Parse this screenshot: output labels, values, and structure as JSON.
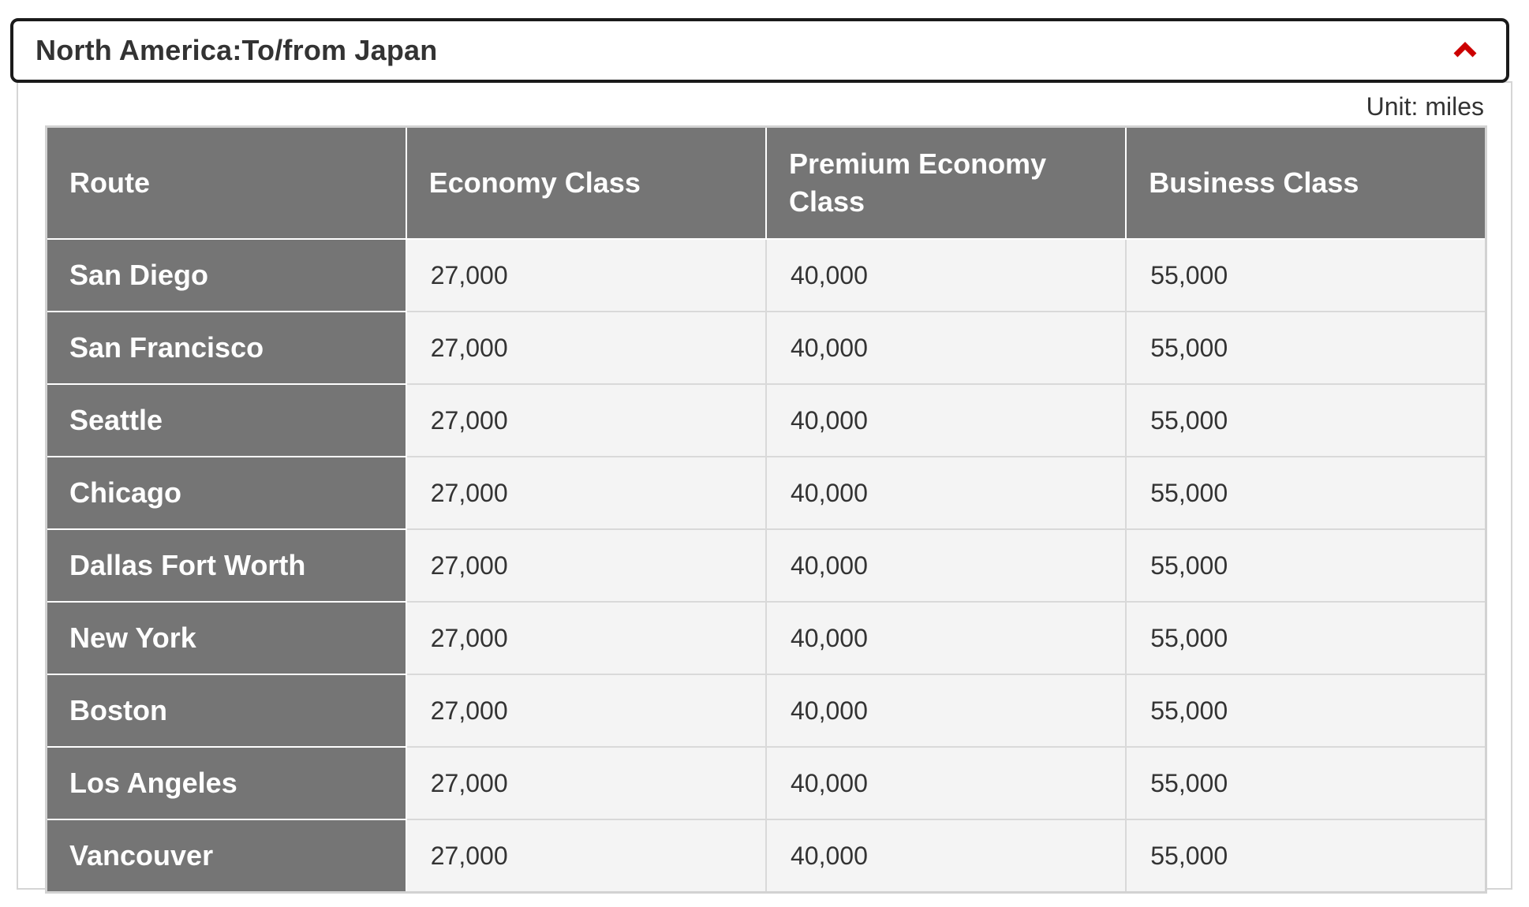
{
  "accordion": {
    "title": "North America:To/from Japan",
    "expanded": true,
    "chevron_icon": "chevron-up-icon",
    "chevron_color": "#cc0000"
  },
  "content": {
    "unit_label": "Unit: miles"
  },
  "table": {
    "columns": [
      "Route",
      "Economy Class",
      "Premium Economy Class",
      "Business Class"
    ],
    "rows": [
      {
        "route": "San Diego",
        "economy": "27,000",
        "premium_economy": "40,000",
        "business": "55,000"
      },
      {
        "route": "San Francisco",
        "economy": "27,000",
        "premium_economy": "40,000",
        "business": "55,000"
      },
      {
        "route": "Seattle",
        "economy": "27,000",
        "premium_economy": "40,000",
        "business": "55,000"
      },
      {
        "route": "Chicago",
        "economy": "27,000",
        "premium_economy": "40,000",
        "business": "55,000"
      },
      {
        "route": "Dallas Fort Worth",
        "economy": "27,000",
        "premium_economy": "40,000",
        "business": "55,000"
      },
      {
        "route": "New York",
        "economy": "27,000",
        "premium_economy": "40,000",
        "business": "55,000"
      },
      {
        "route": "Boston",
        "economy": "27,000",
        "premium_economy": "40,000",
        "business": "55,000"
      },
      {
        "route": "Los Angeles",
        "economy": "27,000",
        "premium_economy": "40,000",
        "business": "55,000"
      },
      {
        "route": "Vancouver",
        "economy": "27,000",
        "premium_economy": "40,000",
        "business": "55,000"
      }
    ]
  },
  "colors": {
    "accent_red": "#cc0000",
    "header_cell_gray": "#757575",
    "data_cell_bg": "#f4f4f4",
    "accordion_border": "#1a1a1a",
    "panel_border": "#d5d5d5",
    "table_border_light": "#d9d9d9",
    "text_dark": "#333333"
  }
}
